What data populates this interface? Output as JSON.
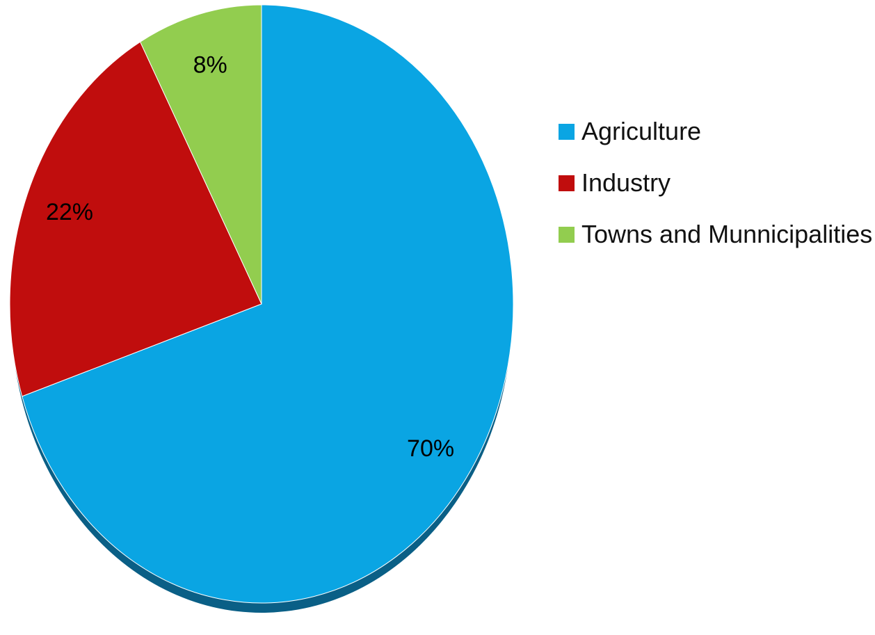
{
  "chart_data": {
    "type": "pie",
    "title": "",
    "categories": [
      "Agriculture",
      "Industry",
      "Towns and Munnicipalities"
    ],
    "values": [
      70,
      22,
      8
    ],
    "labels": [
      "70%",
      "22%",
      "8%"
    ],
    "colors": [
      "#0aa5e3",
      "#c00d0d",
      "#92cd4f"
    ],
    "shadow_color": "#0a5f86",
    "start": "12 o'clock",
    "direction": "clockwise",
    "legend": {
      "position": "right",
      "items": [
        {
          "label": "Agriculture",
          "color": "#0aa5e3"
        },
        {
          "label": "Industry",
          "color": "#c00d0d"
        },
        {
          "label": "Towns and Munnicipalities",
          "color": "#92cd4f"
        }
      ]
    }
  }
}
